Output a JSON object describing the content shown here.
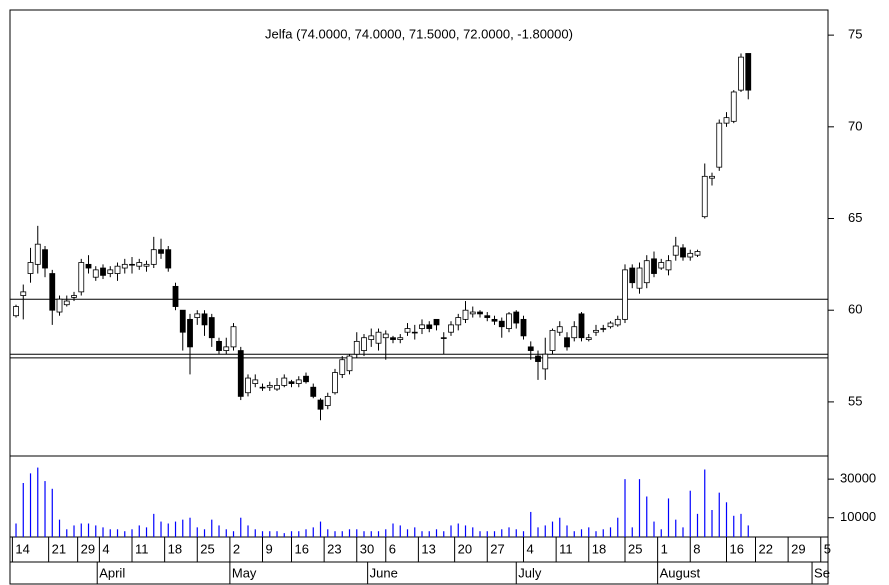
{
  "chart_data": {
    "type": "candlestick",
    "title": "Jelfa (74.0000, 74.0000, 71.5000, 72.0000, -1.80000)",
    "open": [
      59.7,
      60.8,
      62,
      62.5,
      63.3,
      62,
      59.9,
      60.3,
      60.7,
      61,
      62.5,
      61.8,
      62.3,
      62,
      62,
      62.3,
      62.5,
      62.4,
      62.4,
      62.5,
      63.3,
      63.3,
      61.3,
      60,
      59.5,
      59.6,
      59.8,
      59.6,
      58.3,
      57.8,
      58,
      57.8,
      55.5,
      56,
      55.8,
      55.8,
      55.7,
      55.9,
      56.1,
      56,
      56.4,
      55.8,
      55.1,
      54.8,
      55.5,
      56.5,
      56.7,
      57.6,
      57.8,
      58.4,
      58.2,
      58.5,
      58.5,
      58.4,
      58.8,
      58.8,
      59,
      59.2,
      59.5,
      58.5,
      58.8,
      59.2,
      59.5,
      59.8,
      59.9,
      59.7,
      59.5,
      59.4,
      59,
      59.9,
      59.5,
      58,
      57.5,
      56.8,
      57.8,
      58.8,
      58.5,
      58.5,
      59.8,
      58.4,
      58.8,
      59,
      59.1,
      59.2,
      59.5,
      62.3,
      61.2,
      61.5,
      62.8,
      62.3,
      62.2,
      63,
      63.4,
      62.9,
      63,
      65.1,
      67.2,
      67.8,
      70.2,
      70.3,
      72,
      74
    ],
    "high": [
      60.3,
      61.4,
      63.4,
      64.6,
      63.5,
      62.2,
      60.8,
      60.8,
      61,
      62.8,
      63,
      62.4,
      62.5,
      62.4,
      62.6,
      62.8,
      62.9,
      62.8,
      62.7,
      64,
      63.9,
      63.5,
      61.5,
      60,
      59.8,
      60,
      60,
      59.8,
      58.5,
      58.5,
      59.3,
      58,
      56.5,
      56.5,
      56,
      56.1,
      56.3,
      56.5,
      56.2,
      56.4,
      56.6,
      56,
      55.2,
      55.5,
      56.8,
      57.5,
      57.6,
      58.8,
      58.7,
      59,
      59,
      58.9,
      58.6,
      58.7,
      59.3,
      59.2,
      59.5,
      59.4,
      59.5,
      58.8,
      59.4,
      59.8,
      60.5,
      60.2,
      60,
      59.9,
      59.7,
      59.6,
      59.9,
      60,
      59.7,
      58.3,
      57.8,
      58.5,
      59,
      59.4,
      58.8,
      59.4,
      59.9,
      58.7,
      59.2,
      59.2,
      59.4,
      59.7,
      62.5,
      62.5,
      62.6,
      63,
      63.2,
      62.8,
      63,
      64,
      63.6,
      63.3,
      63.3,
      68,
      67.5,
      70.4,
      70.8,
      72,
      74,
      74
    ],
    "low": [
      59.6,
      59.5,
      61.5,
      62,
      61.8,
      59.2,
      59.7,
      60.2,
      60.5,
      60.8,
      62,
      61.6,
      61.7,
      61.8,
      61.6,
      62,
      62,
      62.2,
      62.1,
      62.3,
      62.8,
      62.1,
      60,
      57.8,
      56.5,
      59.2,
      58.6,
      58,
      57.6,
      57.6,
      57.8,
      55.1,
      55.3,
      55.8,
      55.6,
      55.6,
      55.6,
      55.8,
      55.8,
      55.8,
      56,
      55.2,
      54,
      54.6,
      55.4,
      56.3,
      56.5,
      57.4,
      57.5,
      58,
      57.8,
      57.3,
      58.2,
      58.2,
      58.6,
      58.4,
      58.7,
      58.8,
      58.9,
      57.6,
      58.6,
      58.9,
      59.3,
      59.6,
      59.6,
      59.4,
      59.2,
      58.5,
      58.8,
      59,
      58.4,
      57.3,
      56.2,
      56.2,
      57.6,
      58.6,
      57.8,
      58.3,
      58.3,
      58.3,
      58.6,
      58.8,
      59,
      59.1,
      59.3,
      61.2,
      60.9,
      61.2,
      61.8,
      62.2,
      61.9,
      62.7,
      62.7,
      62.7,
      62.9,
      65,
      66.8,
      67.6,
      70,
      70.2,
      71.9,
      71.5
    ],
    "close": [
      60.2,
      61,
      62.6,
      63.6,
      62.3,
      60,
      60.6,
      60.5,
      60.8,
      62.6,
      62.3,
      62.2,
      61.9,
      62.2,
      62.4,
      62.5,
      62.5,
      62.6,
      62.5,
      63.3,
      63.1,
      62.3,
      60.2,
      58.8,
      58,
      59.8,
      59.2,
      58.5,
      57.8,
      58,
      59.1,
      55.3,
      56.3,
      56.2,
      55.8,
      55.9,
      55.9,
      56.3,
      56,
      56.2,
      56.1,
      55.3,
      54.6,
      55.3,
      56.6,
      57.3,
      57.5,
      58.3,
      58.5,
      58.6,
      58.8,
      58.7,
      58.4,
      58.5,
      59,
      58.8,
      59.2,
      59,
      59.2,
      58.5,
      59.2,
      59.6,
      60,
      59.9,
      59.8,
      59.6,
      59.4,
      59.1,
      59.8,
      59.3,
      58.6,
      57.8,
      57.2,
      57.6,
      58.9,
      59.1,
      58,
      59.1,
      58.5,
      58.5,
      58.9,
      59,
      59.3,
      59.5,
      62.2,
      61.5,
      62.3,
      62.7,
      62,
      62.6,
      62.7,
      63.5,
      62.9,
      63.1,
      63.2,
      67.3,
      67.3,
      70.2,
      70.5,
      71.9,
      73.8,
      72
    ],
    "up_color": "#ffffff",
    "down_color": "#000000",
    "xlim": [
      -0.83,
      112
    ],
    "ylim": [
      52.05,
      76.37
    ],
    "yticks": [
      55,
      60,
      65,
      70,
      75
    ],
    "levels": [
      60.6,
      57.6,
      57.4
    ],
    "xticks": [
      {
        "value": -0.5,
        "label": "14"
      },
      {
        "value": 4.5,
        "label": "21"
      },
      {
        "value": 8.5,
        "label": "29"
      },
      {
        "value": 11.5,
        "label": "4"
      },
      {
        "value": 16,
        "label": "11"
      },
      {
        "value": 20.5,
        "label": "18"
      },
      {
        "value": 25,
        "label": "25"
      },
      {
        "value": 29.5,
        "label": "2"
      },
      {
        "value": 34,
        "label": "9"
      },
      {
        "value": 38,
        "label": "16"
      },
      {
        "value": 42.5,
        "label": "23"
      },
      {
        "value": 47,
        "label": "30"
      },
      {
        "value": 51,
        "label": "6"
      },
      {
        "value": 55.5,
        "label": "13"
      },
      {
        "value": 60.5,
        "label": "20"
      },
      {
        "value": 65,
        "label": "27"
      },
      {
        "value": 70,
        "label": "4"
      },
      {
        "value": 74.5,
        "label": "11"
      },
      {
        "value": 79,
        "label": "18"
      },
      {
        "value": 84,
        "label": "25"
      },
      {
        "value": 88.5,
        "label": "1"
      },
      {
        "value": 93,
        "label": "8"
      },
      {
        "value": 98,
        "label": "16"
      },
      {
        "value": 102,
        "label": "22"
      },
      {
        "value": 106.5,
        "label": "29"
      },
      {
        "value": 111,
        "label": "5"
      }
    ],
    "months": [
      {
        "value": 11.2,
        "label": "April"
      },
      {
        "value": 29.5,
        "label": "May"
      },
      {
        "value": 48.5,
        "label": "June"
      },
      {
        "value": 69,
        "label": "July"
      },
      {
        "value": 88.5,
        "label": "August"
      },
      {
        "value": 109.8,
        "label": "Se"
      }
    ],
    "volume": {
      "color": "#0000ff",
      "ylim": [
        0,
        42000
      ],
      "yticks": [
        10000,
        30000
      ],
      "values": [
        7000,
        28000,
        33000,
        36000,
        29000,
        25000,
        9000,
        4000,
        6000,
        7000,
        7000,
        6000,
        5000,
        4000,
        4000,
        3000,
        4000,
        6000,
        5000,
        12000,
        8000,
        7000,
        8000,
        9000,
        10000,
        5000,
        4000,
        9000,
        6000,
        4000,
        3000,
        10000,
        6000,
        4000,
        3000,
        3000,
        3000,
        2000,
        3000,
        3000,
        4000,
        5000,
        8000,
        4000,
        3000,
        3000,
        4000,
        4000,
        3000,
        3000,
        3000,
        4000,
        7000,
        6000,
        4000,
        5000,
        3000,
        3000,
        4000,
        3000,
        6000,
        7000,
        6000,
        5000,
        3000,
        3000,
        3000,
        4000,
        5000,
        4000,
        3000,
        13000,
        5000,
        6000,
        8000,
        10000,
        6000,
        3000,
        4000,
        5000,
        3000,
        4000,
        5000,
        10000,
        30000,
        5000,
        30000,
        21000,
        8000,
        4000,
        20000,
        9000,
        5000,
        24000,
        12000,
        35000,
        14000,
        23000,
        18000,
        11000,
        12000,
        6000
      ]
    }
  }
}
